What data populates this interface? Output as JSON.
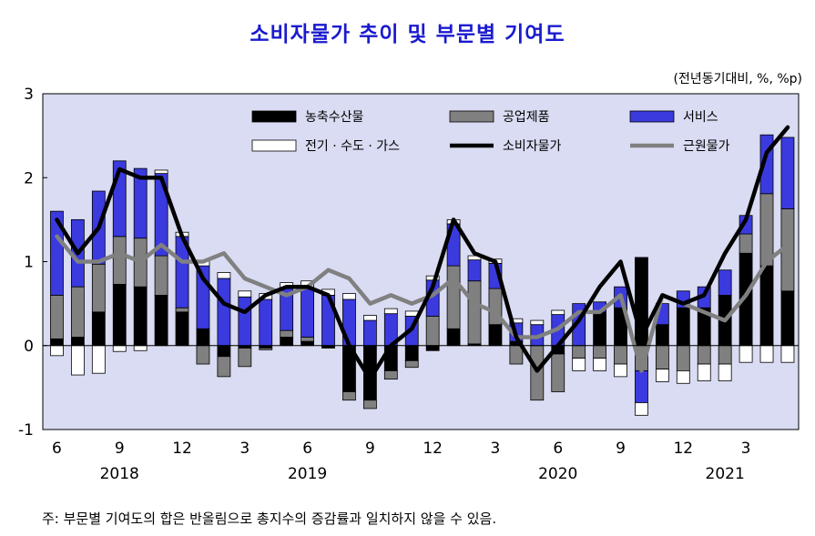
{
  "chart_data": {
    "type": "bar",
    "title": "소비자물가 추이 및 부문별 기여도",
    "unit_note": "(전년동기대비,  %, %p)",
    "footnote": "주: 부문별 기여도의 합은 반올림으로 총지수의 증감률과 일치하지 않을 수 있음.",
    "ylim": [
      -1,
      3
    ],
    "yticks": [
      "3",
      "2",
      "1",
      "0",
      "-1"
    ],
    "ytick_values": [
      3,
      2,
      1,
      0,
      -1
    ],
    "xtick_labels": [
      "6",
      "9",
      "12",
      "3",
      "6",
      "9",
      "12",
      "3",
      "6",
      "9",
      "12",
      "3"
    ],
    "xtick_index": [
      0,
      3,
      6,
      9,
      12,
      15,
      18,
      21,
      24,
      27,
      30,
      33
    ],
    "year_labels": [
      "2018",
      "2019",
      "2020",
      "2021"
    ],
    "year_index": [
      3,
      12,
      24,
      32
    ],
    "grid": false,
    "legend_position": "top",
    "categories": [
      "2018.6",
      "2018.7",
      "2018.8",
      "2018.9",
      "2018.10",
      "2018.11",
      "2018.12",
      "2019.1",
      "2019.2",
      "2019.3",
      "2019.4",
      "2019.5",
      "2019.6",
      "2019.7",
      "2019.8",
      "2019.9",
      "2019.10",
      "2019.11",
      "2019.12",
      "2020.1",
      "2020.2",
      "2020.3",
      "2020.4",
      "2020.5",
      "2020.6",
      "2020.7",
      "2020.8",
      "2020.9",
      "2020.10",
      "2020.11",
      "2020.12",
      "2021.1",
      "2021.2",
      "2021.3",
      "2021.4",
      "2021.5"
    ],
    "series": [
      {
        "name": "농축수산물",
        "kind": "bar",
        "color": "#000000",
        "values": [
          0.08,
          0.1,
          0.4,
          0.73,
          0.7,
          0.6,
          0.4,
          0.2,
          -0.13,
          -0.03,
          -0.03,
          0.1,
          0.05,
          -0.03,
          -0.55,
          -0.65,
          -0.3,
          -0.18,
          -0.06,
          0.2,
          0.02,
          0.25,
          0.05,
          0.0,
          -0.1,
          0.0,
          0.4,
          0.45,
          1.05,
          0.25,
          0.45,
          0.45,
          0.6,
          1.1,
          0.95,
          0.65
        ]
      },
      {
        "name": "공업제품",
        "kind": "bar",
        "color": "#808080",
        "values": [
          0.52,
          0.6,
          0.57,
          0.57,
          0.58,
          0.47,
          0.05,
          -0.22,
          -0.24,
          -0.22,
          -0.02,
          0.08,
          0.05,
          0.0,
          -0.1,
          -0.1,
          -0.1,
          -0.08,
          0.35,
          0.75,
          0.75,
          0.43,
          -0.22,
          -0.65,
          -0.45,
          -0.15,
          -0.15,
          -0.22,
          -0.3,
          -0.28,
          -0.3,
          -0.22,
          -0.22,
          0.23,
          0.86,
          0.98
        ]
      },
      {
        "name": "서비스",
        "kind": "bar",
        "color": "#3a3adf",
        "values": [
          1.0,
          0.8,
          0.87,
          0.9,
          0.83,
          0.98,
          0.85,
          0.75,
          0.8,
          0.58,
          0.55,
          0.5,
          0.6,
          0.6,
          0.55,
          0.3,
          0.38,
          0.35,
          0.43,
          0.5,
          0.25,
          0.3,
          0.22,
          0.25,
          0.37,
          0.5,
          0.12,
          0.25,
          -0.38,
          0.25,
          0.2,
          0.25,
          0.3,
          0.22,
          0.7,
          0.85
        ]
      },
      {
        "name": "전기 · 수도 · 가스",
        "kind": "bar",
        "color": "#ffffff",
        "values": [
          -0.12,
          -0.35,
          -0.33,
          -0.07,
          -0.06,
          0.04,
          0.05,
          0.06,
          0.07,
          0.07,
          0.07,
          0.07,
          0.07,
          0.07,
          0.07,
          0.06,
          0.06,
          0.06,
          0.05,
          0.05,
          0.05,
          0.05,
          0.05,
          0.05,
          0.05,
          -0.15,
          -0.15,
          -0.15,
          -0.15,
          -0.15,
          -0.15,
          -0.2,
          -0.2,
          -0.2,
          -0.2,
          -0.2
        ]
      },
      {
        "name": "소비자물가",
        "kind": "line",
        "color": "#000000",
        "values": [
          1.5,
          1.1,
          1.4,
          2.1,
          2.0,
          2.0,
          1.3,
          0.8,
          0.5,
          0.4,
          0.6,
          0.7,
          0.7,
          0.6,
          0.0,
          -0.4,
          0.0,
          0.2,
          0.7,
          1.5,
          1.1,
          1.0,
          0.1,
          -0.3,
          0.0,
          0.3,
          0.7,
          1.0,
          0.1,
          0.6,
          0.5,
          0.6,
          1.1,
          1.5,
          2.3,
          2.6
        ]
      },
      {
        "name": "근원물가",
        "kind": "line",
        "color": "#808080",
        "values": [
          1.3,
          1.0,
          1.0,
          1.1,
          1.0,
          1.2,
          1.0,
          1.0,
          1.1,
          0.8,
          0.7,
          0.6,
          0.7,
          0.9,
          0.8,
          0.5,
          0.6,
          0.5,
          0.6,
          0.8,
          0.5,
          0.4,
          0.1,
          0.1,
          0.2,
          0.4,
          0.4,
          0.6,
          -0.3,
          0.6,
          0.5,
          0.4,
          0.3,
          0.6,
          1.0,
          1.2
        ]
      }
    ]
  }
}
